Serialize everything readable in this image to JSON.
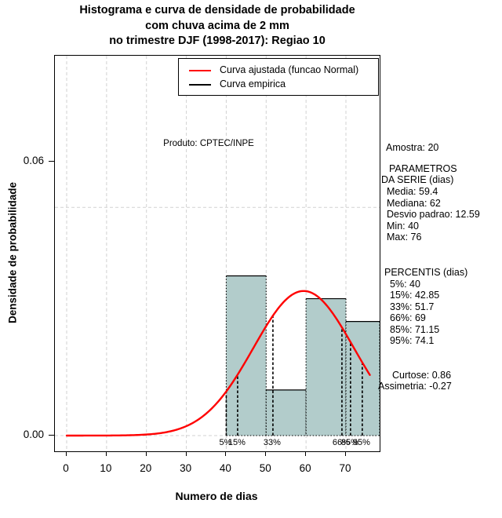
{
  "title": {
    "line1": "Histograma e curva de densidade de probabilidade",
    "line2": "com chuva acima de 2 mm",
    "line3": "no trimestre DJF (1998-2017): Regiao 10"
  },
  "legend": {
    "items": [
      {
        "label": "Curva ajustada (funcao Normal)",
        "color": "#ff0000"
      },
      {
        "label": "Curva empirica",
        "color": "#000000"
      }
    ]
  },
  "watermark": "Produto: CPTEC/INPE",
  "stats": {
    "lines": [
      "Amostra: 20",
      "PARAMETROS",
      "DA SERIE (dias)",
      "Media: 59.4",
      "Mediana: 62",
      "Desvio padrao: 12.59",
      "Min: 40",
      "Max: 76",
      "PERCENTIS (dias)",
      "5%: 40",
      "15%: 42.85",
      "33%: 51.7",
      "66%: 69",
      "85%: 71.15",
      "95%: 74.1",
      "Curtose: 0.86",
      "Assimetria: -0.27"
    ]
  },
  "chart_data": {
    "type": "bar",
    "subtype": "histogram-with-density-curve",
    "title": "Histograma e curva de densidade de probabilidade com chuva acima de 2 mm no trimestre DJF (1998-2017): Regiao 10",
    "xlabel": "Numero de dias",
    "ylabel": "Densidade de probabilidade",
    "x_ticks": [
      0,
      10,
      20,
      30,
      40,
      50,
      60,
      70
    ],
    "y_ticks": [
      {
        "value": 0.0,
        "label": "0.00"
      },
      {
        "value": 0.06,
        "label": "0.06"
      }
    ],
    "grid": "on",
    "grid_y_values": [
      0,
      0.05
    ],
    "xlim": [
      -2.95,
      78.45
    ],
    "ylim": [
      -0.00344,
      0.08324
    ],
    "histogram": {
      "breaks": [
        40,
        50,
        60,
        70,
        80
      ],
      "densities": [
        0.035,
        0.01,
        0.03,
        0.025
      ],
      "counts": [
        7,
        2,
        6,
        5
      ],
      "fill_color": "#b2cccb"
    },
    "fitted_normal": {
      "mean": 59.4,
      "sd": 12.59,
      "x_start": 0,
      "x_end": 76,
      "color": "#ff0000"
    },
    "percentiles": [
      {
        "label": "5%",
        "value": 40
      },
      {
        "label": "15%",
        "value": 42.85
      },
      {
        "label": "33%",
        "value": 51.7
      },
      {
        "label": "66%",
        "value": 69
      },
      {
        "label": "85%",
        "value": 71.15
      },
      {
        "label": "95%",
        "value": 74.1
      }
    ],
    "gridline_color": "#d2d2d2",
    "legend_position": "top"
  }
}
